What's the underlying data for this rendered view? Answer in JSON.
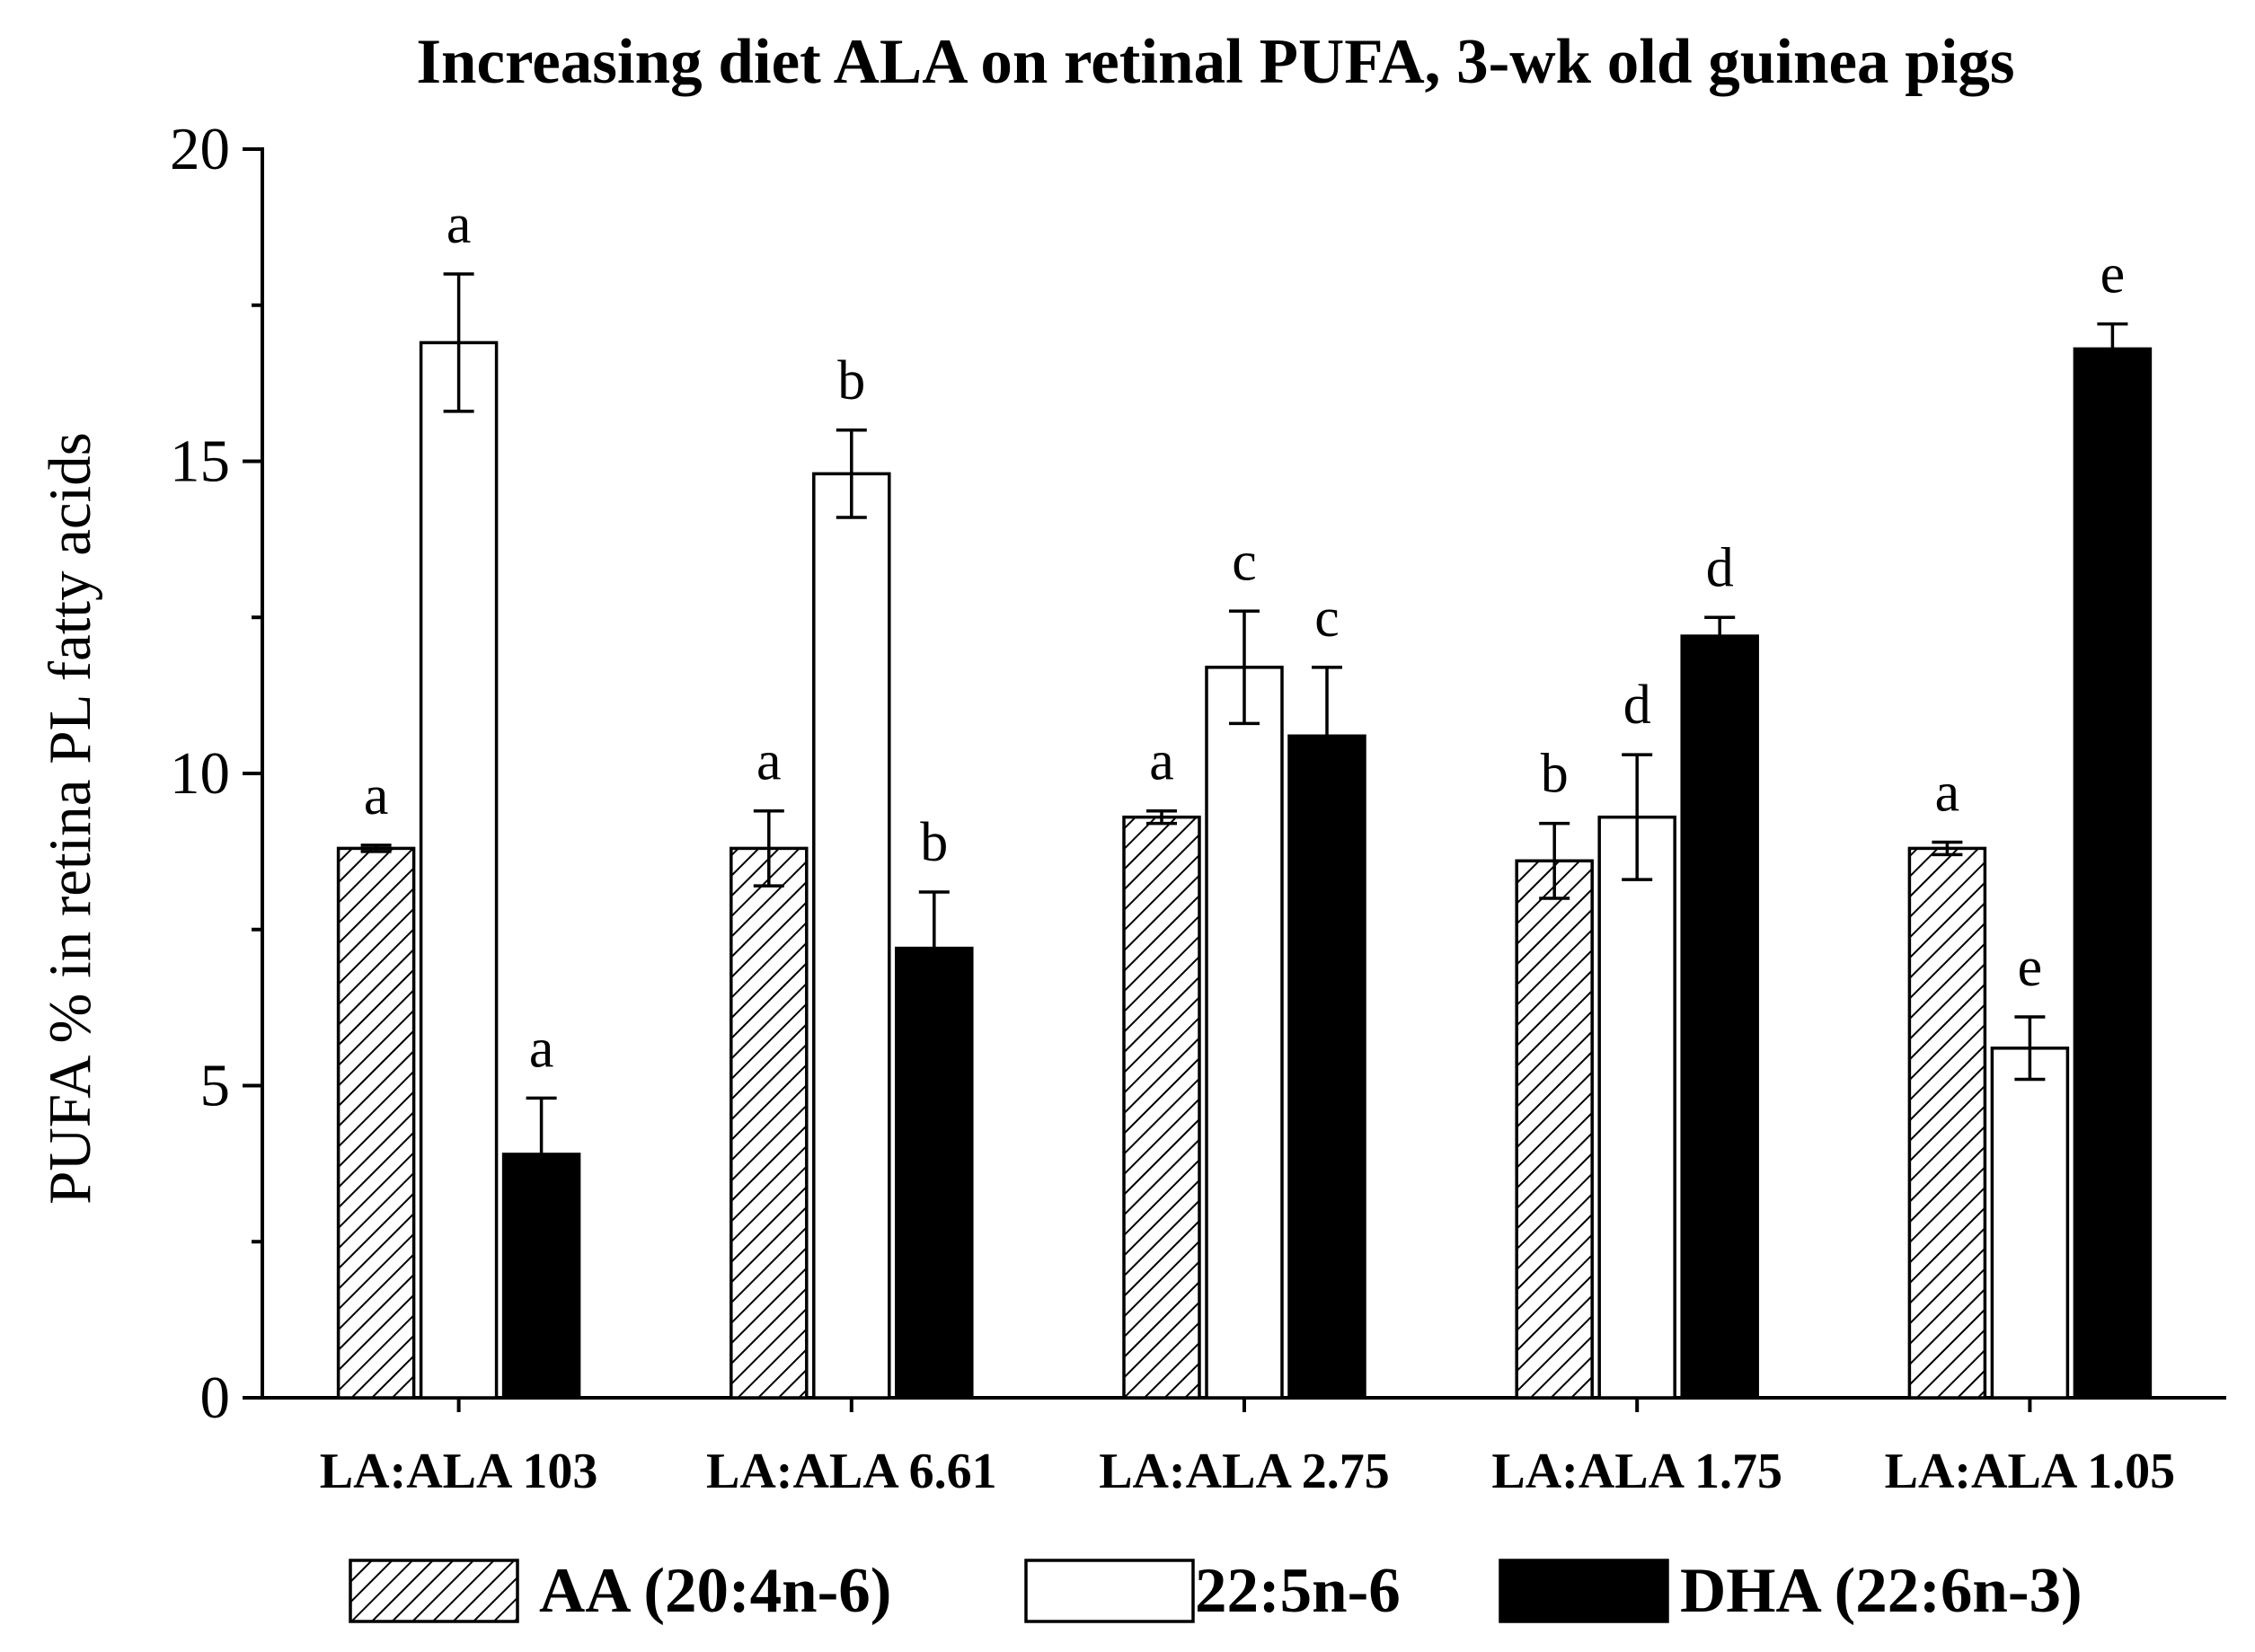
{
  "chart_data": {
    "type": "bar",
    "title": "Increasing diet ALA on retinal PUFA, 3-wk old guinea pigs",
    "xlabel": "",
    "ylabel": "PUFA % in retina PL fatty acids",
    "ylim": [
      0,
      20
    ],
    "yticks": [
      0,
      5,
      10,
      15,
      20
    ],
    "y_minor_step": 2.5,
    "grid": false,
    "legend_position": "bottom",
    "categories": [
      "LA:ALA 103",
      "LA:ALA 6.61",
      "LA:ALA 2.75",
      "LA:ALA 1.75",
      "LA:ALA 1.05"
    ],
    "series": [
      {
        "name": "AA (20:4n-6)",
        "fill": "hatched",
        "color": "#000000",
        "values": [
          8.8,
          8.8,
          9.3,
          8.6,
          8.8
        ],
        "errors": [
          0.05,
          0.6,
          0.1,
          0.6,
          0.1
        ],
        "letters": [
          "a",
          "a",
          "a",
          "b",
          "a"
        ]
      },
      {
        "name": "22:5n-6",
        "fill": "white",
        "color": "#ffffff",
        "values": [
          16.9,
          14.8,
          11.7,
          9.3,
          5.6
        ],
        "errors": [
          1.1,
          0.7,
          0.9,
          1.0,
          0.5
        ],
        "letters": [
          "a",
          "b",
          "c",
          "d",
          "e"
        ]
      },
      {
        "name": "DHA (22:6n-3)",
        "fill": "black",
        "color": "#000000",
        "values": [
          3.9,
          7.2,
          10.6,
          12.2,
          16.8
        ],
        "errors": [
          0.9,
          0.9,
          1.1,
          0.3,
          0.4
        ],
        "letters": [
          "a",
          "b",
          "c",
          "d",
          "e"
        ]
      }
    ]
  }
}
